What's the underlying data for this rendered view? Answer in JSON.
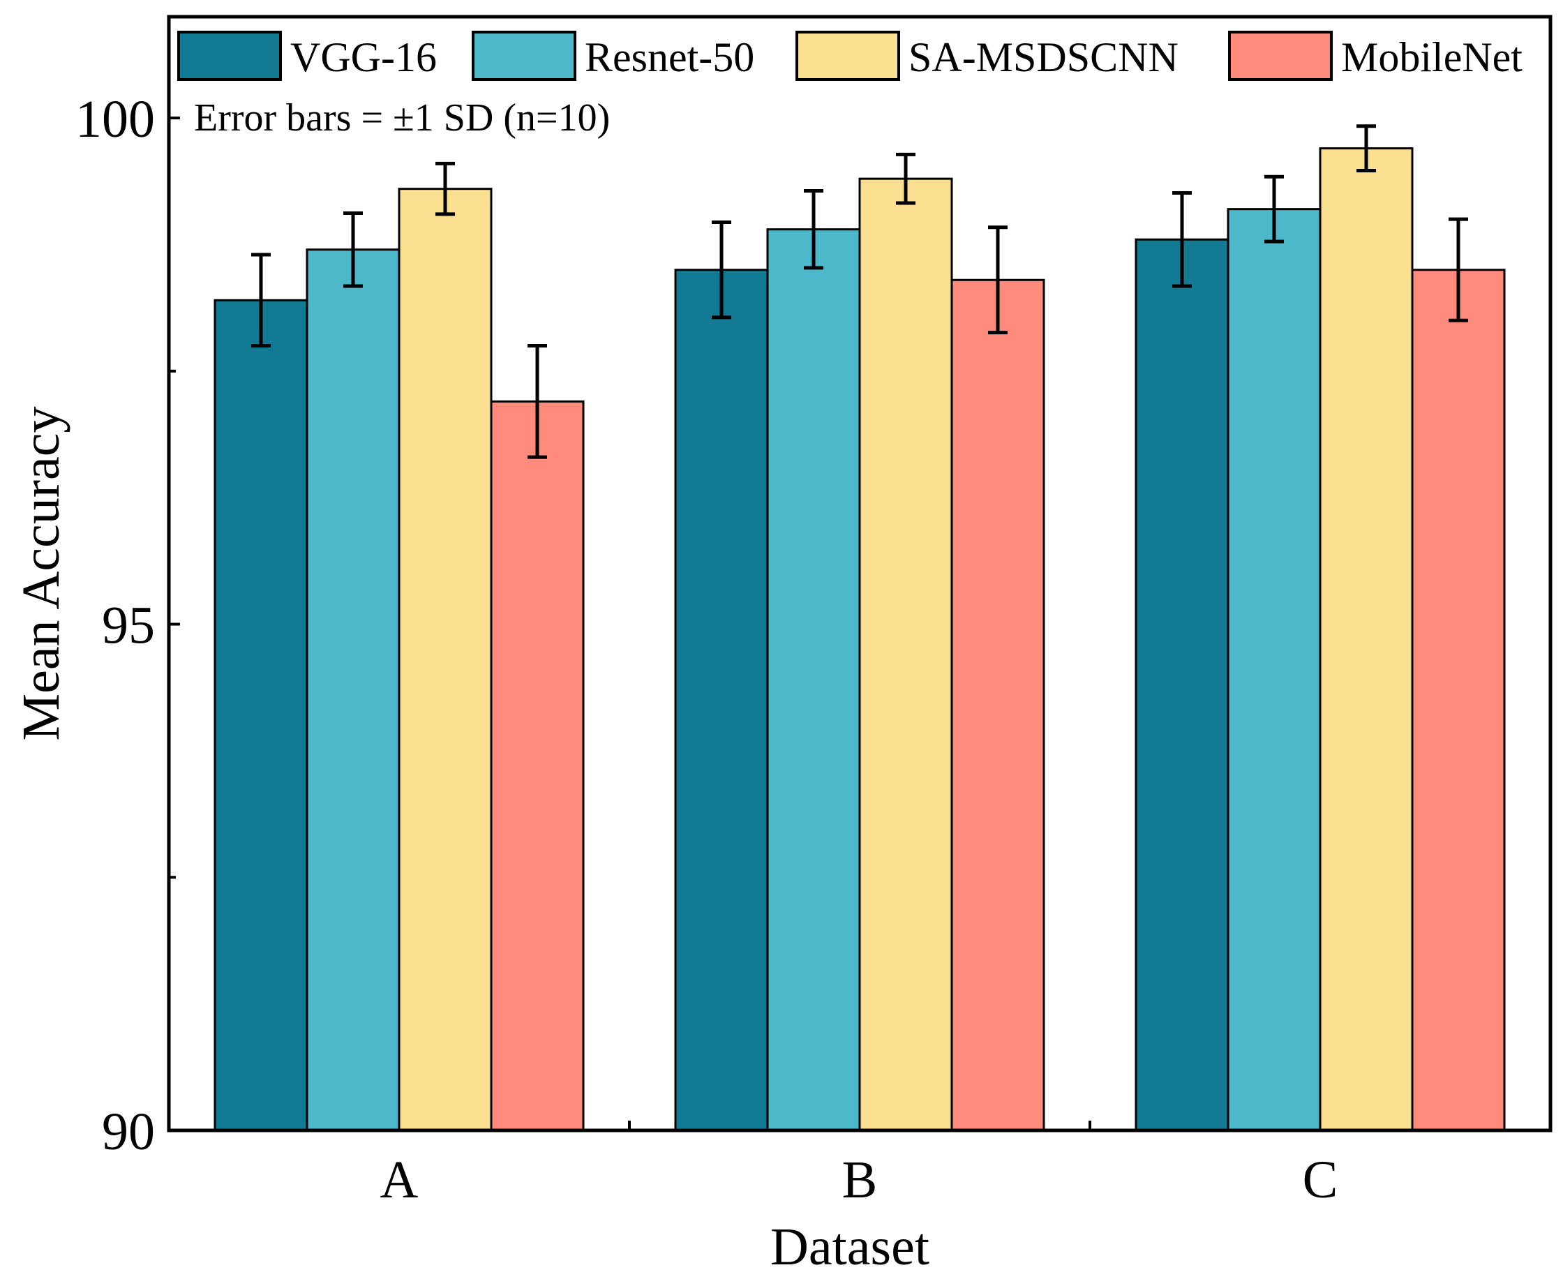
{
  "chart_data": {
    "type": "bar",
    "title": "",
    "xlabel": "Dataset",
    "ylabel": "Mean Accuracy",
    "categories": [
      "A",
      "B",
      "C"
    ],
    "ylim": [
      90,
      101
    ],
    "yticks": [
      90,
      95,
      100
    ],
    "yminor_ticks": [
      92.5,
      97.5
    ],
    "note": "Error bars = ±1 SD (n=10)",
    "legend_position": "top",
    "series": [
      {
        "name": "VGG-16",
        "color": "#127a93",
        "values": [
          98.2,
          98.5,
          98.8
        ],
        "errors": [
          0.45,
          0.47,
          0.46
        ]
      },
      {
        "name": "Resnet-50",
        "color": "#4eb8cb",
        "values": [
          98.7,
          98.9,
          99.1
        ],
        "errors": [
          0.36,
          0.38,
          0.32
        ]
      },
      {
        "name": "SA-MSDSCNN",
        "color": "#fbdf91",
        "values": [
          99.3,
          99.4,
          99.7
        ],
        "errors": [
          0.25,
          0.24,
          0.22
        ]
      },
      {
        "name": "MobileNet",
        "color": "#fe8b7b",
        "values": [
          97.2,
          98.4,
          98.5
        ],
        "errors": [
          0.55,
          0.52,
          0.5
        ]
      }
    ]
  }
}
